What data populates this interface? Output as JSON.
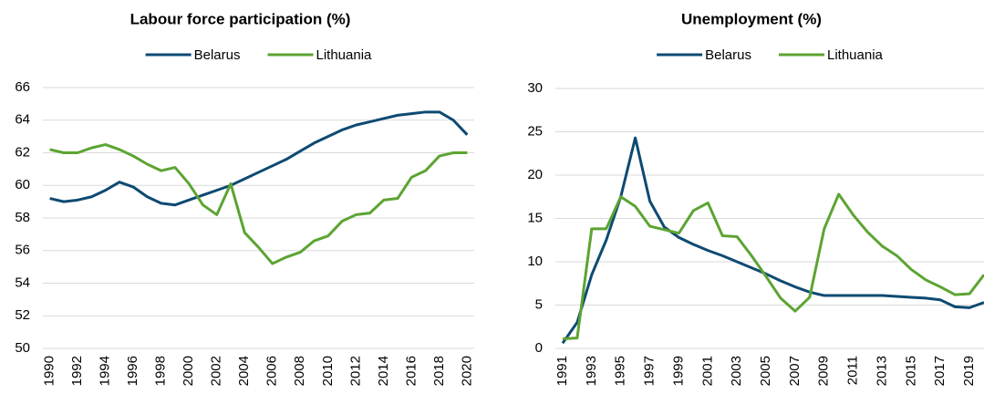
{
  "chart_data": [
    {
      "type": "line",
      "title": "Labour force participation (%)",
      "x": [
        1990,
        1991,
        1992,
        1993,
        1994,
        1995,
        1996,
        1997,
        1998,
        1999,
        2000,
        2001,
        2002,
        2003,
        2004,
        2005,
        2006,
        2007,
        2008,
        2009,
        2010,
        2011,
        2012,
        2013,
        2014,
        2015,
        2016,
        2017,
        2018,
        2019,
        2020
      ],
      "series": [
        {
          "name": "Belarus",
          "color": "#0e4a72",
          "values": [
            59.2,
            59.0,
            59.1,
            59.3,
            59.7,
            60.2,
            59.9,
            59.3,
            58.9,
            58.8,
            59.1,
            59.4,
            59.7,
            60.0,
            60.4,
            60.8,
            61.2,
            61.6,
            62.1,
            62.6,
            63.0,
            63.4,
            63.7,
            63.9,
            64.1,
            64.3,
            64.4,
            64.5,
            64.5,
            64.0,
            63.1
          ]
        },
        {
          "name": "Lithuania",
          "color": "#5ca432",
          "values": [
            62.2,
            62.0,
            62.0,
            62.3,
            62.5,
            62.2,
            61.8,
            61.3,
            60.9,
            61.1,
            60.1,
            58.8,
            58.2,
            60.1,
            57.1,
            56.2,
            55.2,
            55.6,
            55.9,
            56.6,
            56.9,
            57.8,
            58.2,
            58.3,
            59.1,
            59.2,
            60.5,
            60.9,
            61.8,
            62.0,
            62.0
          ]
        }
      ],
      "xlim": [
        1989.5,
        2020.5
      ],
      "xticks": [
        1990,
        1992,
        1994,
        1996,
        1998,
        2000,
        2002,
        2004,
        2006,
        2008,
        2010,
        2012,
        2014,
        2016,
        2018,
        2020
      ],
      "ylim": [
        50,
        66
      ],
      "yticks": [
        50,
        52,
        54,
        56,
        58,
        60,
        62,
        64,
        66
      ],
      "grid": true,
      "legend": "top"
    },
    {
      "type": "line",
      "title": "Unemployment (%)",
      "x": [
        1991,
        1992,
        1993,
        1994,
        1995,
        1996,
        1997,
        1998,
        1999,
        2000,
        2001,
        2002,
        2003,
        2004,
        2005,
        2006,
        2007,
        2008,
        2009,
        2010,
        2011,
        2012,
        2013,
        2014,
        2015,
        2016,
        2017,
        2018,
        2019,
        2020
      ],
      "series": [
        {
          "name": "Belarus",
          "color": "#0e4a72",
          "values": [
            0.6,
            3.0,
            8.5,
            12.5,
            17.5,
            24.3,
            17.0,
            14.0,
            12.8,
            12.0,
            11.3,
            10.7,
            10.0,
            9.3,
            8.6,
            7.8,
            7.1,
            6.5,
            6.1,
            6.1,
            6.1,
            6.1,
            6.1,
            6.0,
            5.9,
            5.8,
            5.6,
            4.8,
            4.7,
            5.3
          ]
        },
        {
          "name": "Lithuania",
          "color": "#5ca432",
          "values": [
            1.1,
            1.2,
            13.8,
            13.8,
            17.5,
            16.4,
            14.1,
            13.7,
            13.3,
            15.9,
            16.8,
            13.0,
            12.9,
            10.7,
            8.3,
            5.8,
            4.3,
            5.9,
            13.8,
            17.8,
            15.4,
            13.4,
            11.8,
            10.7,
            9.1,
            7.9,
            7.1,
            6.2,
            6.3,
            8.5
          ]
        }
      ],
      "xlim": [
        1990.5,
        2020
      ],
      "xticks": [
        1991,
        1993,
        1995,
        1997,
        1999,
        2001,
        2003,
        2005,
        2007,
        2009,
        2011,
        2013,
        2015,
        2017,
        2019
      ],
      "ylim": [
        0,
        30
      ],
      "yticks": [
        0,
        5,
        10,
        15,
        20,
        25,
        30
      ],
      "grid": true,
      "legend": "top"
    }
  ]
}
